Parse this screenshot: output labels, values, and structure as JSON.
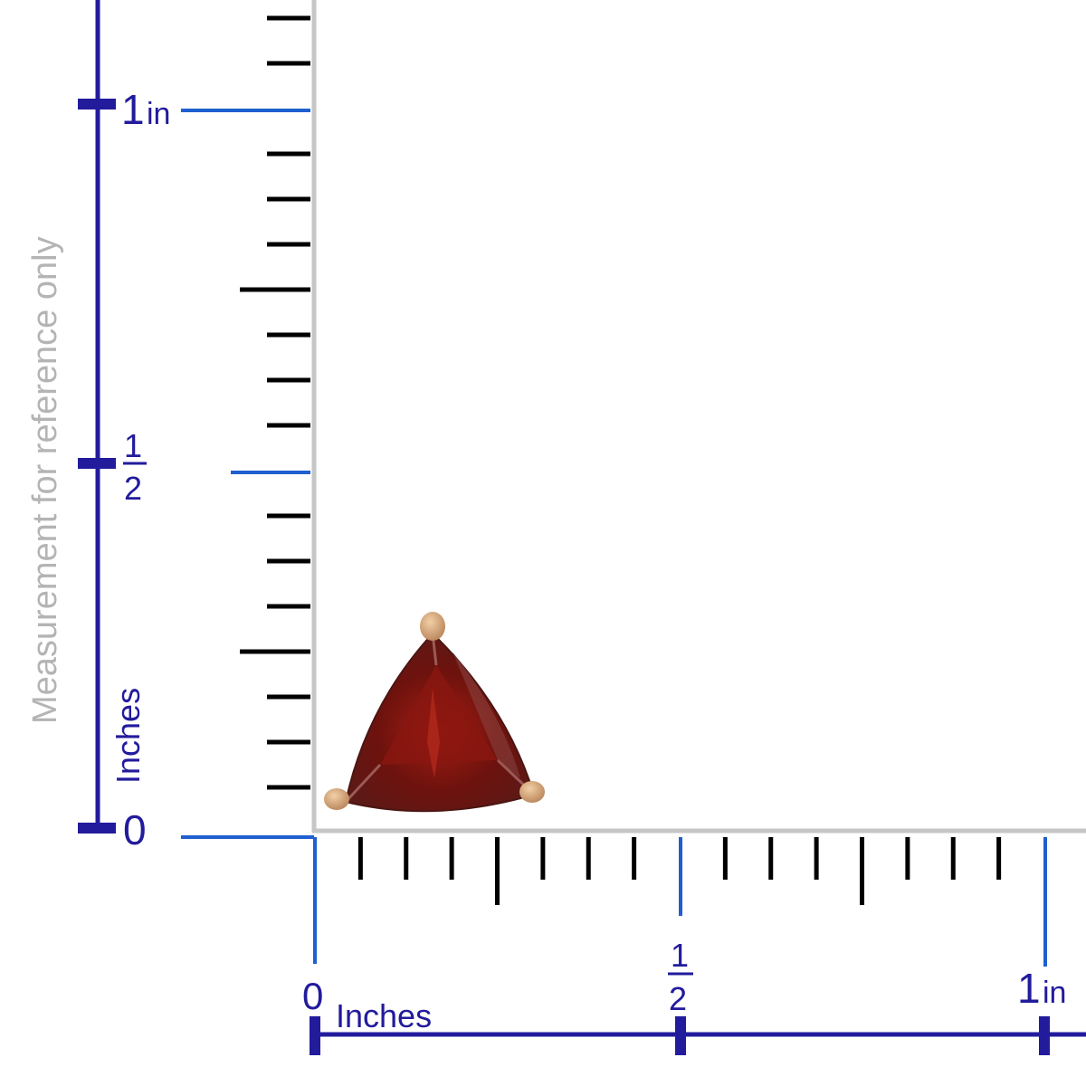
{
  "colors": {
    "ruler_dark": "#221b9c",
    "ruler_blue": "#1f5fd0",
    "frame_grey": "#c6c6c6",
    "tick_black": "#000000",
    "disclaimer_grey": "#b4b4b4",
    "gem_red": "#7a1510",
    "metal_gold": "#d6a77a"
  },
  "disclaimer": "Measurement for reference only",
  "vertical_ruler": {
    "unit_label": "Inches",
    "zero": "0",
    "half_num": "1",
    "half_den": "2",
    "one": "1",
    "one_unit": "in"
  },
  "horizontal_ruler": {
    "unit_label": "Inches",
    "zero": "0",
    "half_num": "1",
    "half_den": "2",
    "one": "1",
    "one_unit": "in"
  },
  "product": {
    "icon": "trillion-garnet-stud-earring"
  }
}
